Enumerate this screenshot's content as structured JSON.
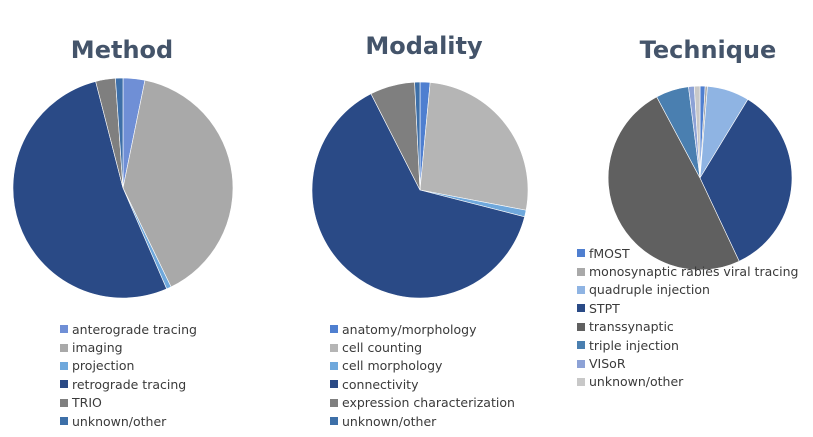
{
  "chart_data": [
    {
      "type": "pie",
      "title": "Method",
      "categories": [
        "anterograde tracing",
        "imaging",
        "projection",
        "retrograde tracing",
        "TRIO",
        "unknown/other"
      ],
      "values": [
        3.2,
        39.6,
        0.7,
        52.5,
        2.9,
        1.1
      ],
      "colors": [
        "#6f8fd6",
        "#a9a9a9",
        "#6fa8dc",
        "#2a4a86",
        "#7f7f7f",
        "#3d6fa8"
      ],
      "legend_position": "bottom"
    },
    {
      "type": "pie",
      "title": "Modality",
      "categories": [
        "anatomy/morphology",
        "cell counting",
        "cell morphology",
        "connectivity",
        "expression characterization",
        "unknown/other"
      ],
      "values": [
        1.5,
        26.5,
        1.0,
        63.5,
        6.7,
        0.8
      ],
      "colors": [
        "#4f7fd0",
        "#b5b5b5",
        "#6fa8dc",
        "#2a4a86",
        "#7f7f7f",
        "#3d6fa8"
      ],
      "legend_position": "bottom"
    },
    {
      "type": "pie",
      "title": "Technique",
      "categories": [
        "fMOST",
        "monosynaptic rabies viral tracing",
        "quadruple injection",
        "STPT",
        "transsynaptic",
        "triple injection",
        "VISoR",
        "unknown/other"
      ],
      "values": [
        0.9,
        0.4,
        7.4,
        34.3,
        49.2,
        5.8,
        1.0,
        1.0
      ],
      "colors": [
        "#4f7fd0",
        "#a9a9a9",
        "#8fb4e3",
        "#2a4a86",
        "#606060",
        "#4a7fb0",
        "#8da2d6",
        "#c8c8c8"
      ],
      "legend_position": "bottom-left"
    }
  ]
}
